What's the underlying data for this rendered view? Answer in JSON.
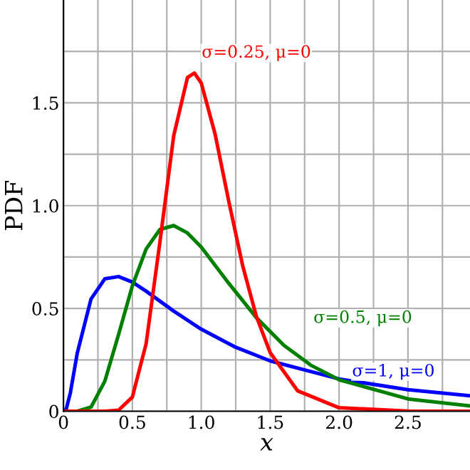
{
  "chart_data": {
    "type": "line",
    "xlabel": "x",
    "ylabel": "PDF",
    "xlim": [
      0,
      2.95
    ],
    "ylim": [
      0,
      2.0
    ],
    "xticks": [
      0,
      {
        "value": 0.25,
        "label": null
      },
      0.5,
      {
        "value": 0.75,
        "label": null
      },
      {
        "value": 1,
        "label": "1.0"
      },
      {
        "value": 1.25,
        "label": null
      },
      1.5,
      {
        "value": 1.75,
        "label": null
      },
      {
        "value": 2,
        "label": "2.0"
      },
      {
        "value": 2.25,
        "label": null
      },
      2.5,
      {
        "value": 2.75,
        "label": null
      }
    ],
    "yticks": [
      0,
      {
        "value": 0.25,
        "label": null
      },
      0.5,
      {
        "value": 0.75,
        "label": null
      },
      {
        "value": 1,
        "label": "1.0"
      },
      {
        "value": 1.25,
        "label": null
      },
      1.5,
      {
        "value": 1.75,
        "label": null
      }
    ],
    "grid": true,
    "legend": false,
    "marker": "none",
    "line_style": "solid",
    "series": [
      {
        "name": "σ=1, μ=0",
        "color": "#0000ff",
        "x": [
          0,
          0.02,
          0.05,
          0.1,
          0.2,
          0.3,
          0.4,
          0.5,
          0.6,
          0.8,
          1.0,
          1.25,
          1.5,
          2.0,
          2.5,
          2.95
        ],
        "values": [
          0,
          0.01,
          0.089,
          0.282,
          0.546,
          0.644,
          0.655,
          0.628,
          0.584,
          0.487,
          0.399,
          0.311,
          0.245,
          0.157,
          0.105,
          0.075
        ]
      },
      {
        "name": "σ=0.5, μ=0",
        "color": "#008000",
        "x": [
          0,
          0.1,
          0.2,
          0.3,
          0.4,
          0.5,
          0.6,
          0.7,
          0.8,
          0.9,
          1.0,
          1.2,
          1.4,
          1.6,
          1.8,
          2.0,
          2.5,
          2.95
        ],
        "values": [
          0,
          0,
          0.02,
          0.146,
          0.373,
          0.61,
          0.789,
          0.884,
          0.903,
          0.867,
          0.798,
          0.622,
          0.455,
          0.32,
          0.222,
          0.153,
          0.06,
          0.026
        ]
      },
      {
        "name": "σ=0.25, μ=0",
        "color": "#ff0000",
        "x": [
          0,
          0.3,
          0.4,
          0.5,
          0.6,
          0.7,
          0.8,
          0.9,
          0.95,
          1.0,
          1.1,
          1.2,
          1.3,
          1.4,
          1.5,
          1.7,
          2.0,
          2.5,
          2.95
        ],
        "values": [
          0,
          0,
          0.005,
          0.069,
          0.329,
          0.823,
          1.34,
          1.623,
          1.645,
          1.596,
          1.349,
          1.02,
          0.709,
          0.461,
          0.285,
          0.099,
          0.017,
          0.001,
          0
        ]
      }
    ]
  }
}
